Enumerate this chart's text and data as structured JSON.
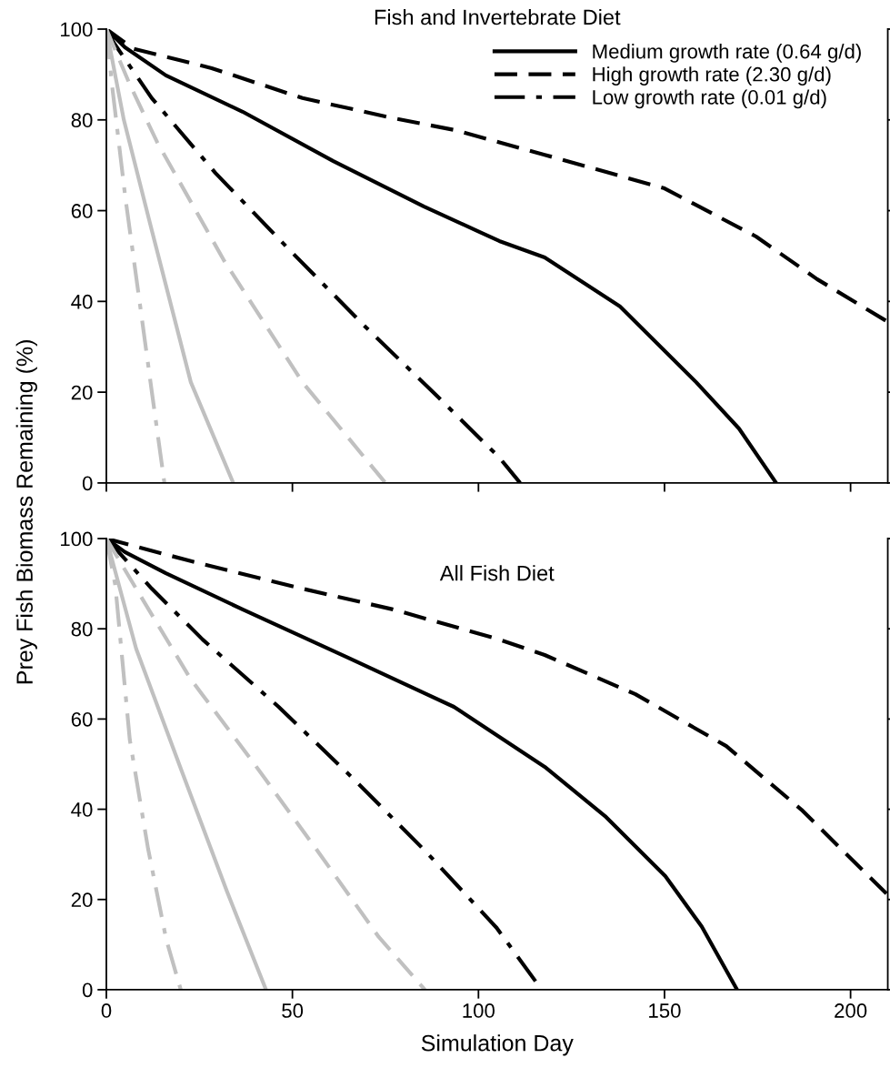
{
  "chart_data": [
    {
      "type": "line",
      "title": "Fish and Invertebrate Diet",
      "ylabel": "Prey Fish Biomass Remaining (%)",
      "xlim": [
        0,
        210
      ],
      "xticks": [
        0,
        50,
        100,
        150,
        200
      ],
      "ylim": [
        0,
        100
      ],
      "yticks": [
        0,
        20,
        40,
        60,
        80,
        100
      ],
      "tick_labels": "y",
      "legend": "top right",
      "series": [
        {
          "name": "Medium growth rate (0.64 g/d)",
          "color": "#000000",
          "line_style": "solid",
          "x": [
            0,
            5,
            16,
            36.6,
            61,
            85.4,
            105.6,
            117.8,
            138,
            158.5,
            170,
            180
          ],
          "values": [
            100,
            96,
            89.8,
            81.8,
            70.9,
            60.9,
            53.3,
            49.7,
            38.9,
            22.2,
            12,
            0
          ]
        },
        {
          "name": "High growth rate (2.30 g/d)",
          "color": "#000000",
          "line_style": "dashed",
          "x": [
            0,
            7.2,
            28.3,
            52.7,
            77,
            93.4,
            117.8,
            150,
            174.6,
            191,
            210
          ],
          "values": [
            100,
            95.7,
            91.4,
            84.8,
            80.4,
            77.8,
            72.3,
            64.9,
            54.3,
            44.9,
            35.5
          ]
        },
        {
          "name": "Low growth rate (0.01 g/d)",
          "color": "#000000",
          "line_style": "dashdot",
          "x": [
            0,
            2,
            12.2,
            29.3,
            48.8,
            69,
            89.3,
            105.6,
            111.2
          ],
          "values": [
            100,
            97,
            84.8,
            68.3,
            51.7,
            34.9,
            18.8,
            5.6,
            0
          ]
        },
        {
          "color": "#c0c0c0",
          "line_style": "dashed",
          "x": [
            0,
            6.3,
            13.7,
            31.7,
            52.7,
            75
          ],
          "values": [
            100,
            87.8,
            75,
            48.9,
            22.2,
            0
          ]
        },
        {
          "color": "#c0c0c0",
          "line_style": "solid",
          "x": [
            0,
            4.7,
            12.2,
            22.7,
            34.1
          ],
          "values": [
            100,
            80,
            55.7,
            22.2,
            0
          ]
        },
        {
          "color": "#c0c0c0",
          "line_style": "dashdot",
          "x": [
            0,
            1.5,
            5.1,
            9.3,
            12.2,
            15.6
          ],
          "values": [
            100,
            87.8,
            62.9,
            37.7,
            20.2,
            0
          ]
        }
      ]
    },
    {
      "type": "line",
      "title": "All Fish Diet",
      "xlabel": "Simulation Day",
      "xlim": [
        0,
        210
      ],
      "xticks": [
        0,
        50,
        100,
        150,
        200
      ],
      "ylim": [
        0,
        100
      ],
      "yticks": [
        0,
        20,
        40,
        60,
        80,
        100
      ],
      "series": [
        {
          "color": "#000000",
          "line_style": "solid",
          "x": [
            0,
            5,
            16,
            36.6,
            64.9,
            93.4,
            117.8,
            134,
            150.2,
            160,
            169.5
          ],
          "values": [
            100,
            97,
            92.3,
            84.3,
            73.6,
            62.7,
            49.4,
            38.5,
            25.2,
            14,
            0
          ]
        },
        {
          "color": "#000000",
          "line_style": "dashed",
          "x": [
            0,
            22.7,
            52.7,
            77,
            104.9,
            117.8,
            142.2,
            166.6,
            186.8,
            210
          ],
          "values": [
            100,
            95,
            88.9,
            84.3,
            77.8,
            74.2,
            65.5,
            54,
            39.9,
            21
          ]
        },
        {
          "color": "#000000",
          "line_style": "dashdot",
          "x": [
            0,
            12.2,
            25.9,
            46.3,
            66.6,
            86.1,
            104.9,
            117
          ],
          "values": [
            100,
            88.9,
            77.6,
            62.7,
            46.6,
            30.4,
            13.7,
            0
          ]
        },
        {
          "color": "#c0c0c0",
          "line_style": "dashed",
          "x": [
            0,
            8,
            22.7,
            39.8,
            57.6,
            73.2,
            85.6
          ],
          "values": [
            100,
            88.9,
            68.8,
            50,
            29.8,
            11.7,
            0
          ]
        },
        {
          "color": "#c0c0c0",
          "line_style": "solid",
          "x": [
            0,
            8,
            20.2,
            32.4,
            42.9
          ],
          "values": [
            100,
            75.6,
            48.6,
            21.8,
            0
          ]
        },
        {
          "color": "#c0c0c0",
          "line_style": "dashdot",
          "x": [
            0,
            2.4,
            6.3,
            11.2,
            16.1,
            20
          ],
          "values": [
            100,
            89.7,
            55.4,
            31.3,
            11.1,
            0
          ]
        }
      ]
    }
  ]
}
